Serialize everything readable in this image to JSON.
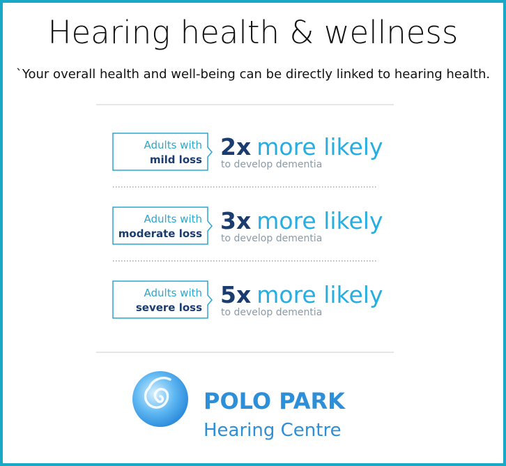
{
  "header": {
    "title": "Hearing health & wellness",
    "subtitle": "`Your overall health and well-being can be directly linked to hearing health."
  },
  "rows": [
    {
      "label_line1": "Adults with",
      "label_line2": "mild loss",
      "multiplier": "2x",
      "phrase": "more likely",
      "note": "to develop dementia"
    },
    {
      "label_line1": "Adults with",
      "label_line2": "moderate loss",
      "multiplier": "3x",
      "phrase": "more likely",
      "note": "to develop dementia"
    },
    {
      "label_line1": "Adults with",
      "label_line2": "severe loss",
      "multiplier": "5x",
      "phrase": "more likely",
      "note": "to develop dementia"
    }
  ],
  "logo": {
    "name": "POLO PARK",
    "subname": "Hearing Centre"
  }
}
